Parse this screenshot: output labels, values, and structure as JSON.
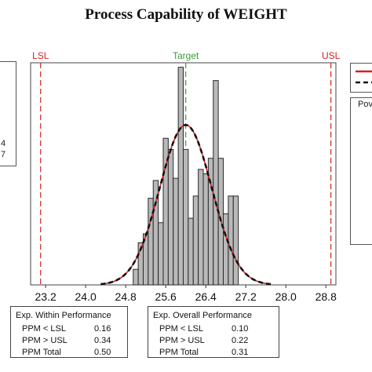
{
  "chart_data": {
    "type": "histogram",
    "title": "Process Capability of WEIGHT",
    "xlim": [
      22.9,
      29.0
    ],
    "ylim": [
      0,
      100
    ],
    "x_ticks": [
      23.2,
      24.0,
      24.8,
      25.6,
      26.4,
      27.2,
      28.0,
      28.8
    ],
    "x_tick_labels": [
      "23.2",
      "24.0",
      "24.8",
      "25.6",
      "26.4",
      "27.2",
      "28.0",
      "28.8"
    ],
    "reference_lines": [
      {
        "label": "LSL",
        "x": 23.1,
        "color": "#d62020"
      },
      {
        "label": "Target",
        "x": 26.0,
        "color": "#3a9a3a"
      },
      {
        "label": "USL",
        "x": 28.9,
        "color": "#d62020"
      }
    ],
    "bins": {
      "x_start": 24.95,
      "width": 0.1,
      "counts": [
        7,
        19,
        23,
        39,
        47,
        28,
        66,
        61,
        48,
        98,
        61,
        30,
        40,
        52,
        50,
        57,
        92,
        57,
        32,
        40,
        40
      ]
    },
    "curves": [
      {
        "type": "normal",
        "mean": 26.0,
        "sd": 0.52,
        "peak": 72,
        "color": "#d62020",
        "style": "solid"
      },
      {
        "type": "normal",
        "mean": 26.0,
        "sd": 0.52,
        "peak": 72,
        "color": "#111111",
        "style": "dashed"
      }
    ],
    "grid": false
  },
  "left_panel": {
    "line1": "4",
    "line2": "7"
  },
  "power_box": {
    "label": "Pov"
  },
  "legend": {
    "within_color": "#d62020",
    "overall_color": "#111111"
  },
  "within": {
    "header": "Exp. Within Performance",
    "rows": [
      {
        "label": "PPM < LSL",
        "value": "0.16"
      },
      {
        "label": "PPM > USL",
        "value": "0.34"
      },
      {
        "label": "PPM Total",
        "value": "0.50"
      }
    ]
  },
  "overall": {
    "header": "Exp. Overall Performance",
    "rows": [
      {
        "label": "PPM < LSL",
        "value": "0.10"
      },
      {
        "label": "PPM > USL",
        "value": "0.22"
      },
      {
        "label": "PPM Total",
        "value": "0.31"
      }
    ]
  }
}
